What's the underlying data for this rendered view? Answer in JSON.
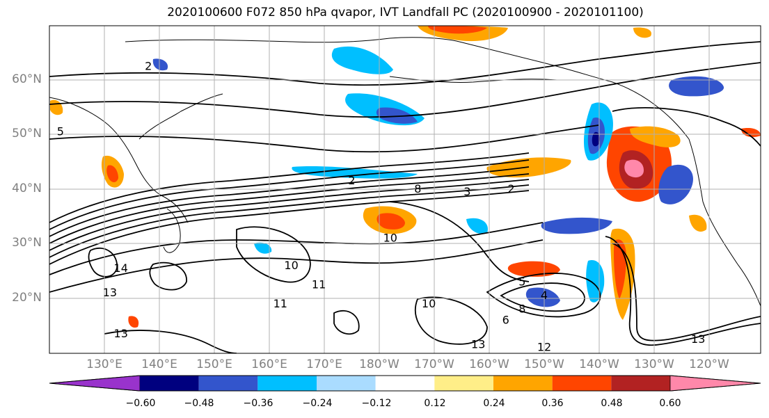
{
  "title": "2020100600 F072 850 hPa qvapor, IVT Landfall PC (2020100900 - 2020101100)",
  "lat_labels": [
    "60°N",
    "50°N",
    "40°N",
    "30°N",
    "20°N"
  ],
  "lon_labels": [
    "130°E",
    "140°E",
    "150°E",
    "160°E",
    "170°E",
    "180°W",
    "170°W",
    "160°W",
    "150°W",
    "140°W",
    "130°W",
    "120°W"
  ],
  "colorbar": {
    "colors": [
      "#9933cc",
      "#00007f",
      "#3355cc",
      "#00bfff",
      "#aadcff",
      "#ffffff",
      "#ffee88",
      "#ffa500",
      "#ff4500",
      "#b22222",
      "#ff88aa"
    ],
    "ticks": [
      "−0.60",
      "−0.48",
      "−0.36",
      "−0.24",
      "−0.12",
      "0.12",
      "0.24",
      "0.36",
      "0.48",
      "0.60"
    ]
  },
  "contour_labels": [
    {
      "text": "2",
      "lon": 138,
      "lat": 62.5
    },
    {
      "text": "2",
      "lon": 175,
      "lat": 41.5
    },
    {
      "text": "2",
      "lon": -156,
      "lat": 40
    },
    {
      "text": "3",
      "lon": 196,
      "lat": 39.5
    },
    {
      "text": "5",
      "lon": 122,
      "lat": 50.5
    },
    {
      "text": "8",
      "lon": 187,
      "lat": 40
    },
    {
      "text": "10",
      "lon": 182,
      "lat": 31
    },
    {
      "text": "10",
      "lon": 164,
      "lat": 26
    },
    {
      "text": "10",
      "lon": -171,
      "lat": 19
    },
    {
      "text": "11",
      "lon": 169,
      "lat": 22.5
    },
    {
      "text": "11",
      "lon": 162,
      "lat": 19
    },
    {
      "text": "13",
      "lon": 131,
      "lat": 21
    },
    {
      "text": "13",
      "lon": 133,
      "lat": 13.5
    },
    {
      "text": "13",
      "lon": -162,
      "lat": 11.5
    },
    {
      "text": "13",
      "lon": -122,
      "lat": 12.5
    },
    {
      "text": "12",
      "lon": -150,
      "lat": 11
    },
    {
      "text": "14",
      "lon": 133,
      "lat": 25.5
    },
    {
      "text": "4",
      "lon": -150,
      "lat": 20.5
    },
    {
      "text": "5",
      "lon": -154,
      "lat": 23
    },
    {
      "text": "6",
      "lon": -157,
      "lat": 16
    },
    {
      "text": "8",
      "lon": -154,
      "lat": 18
    }
  ]
}
